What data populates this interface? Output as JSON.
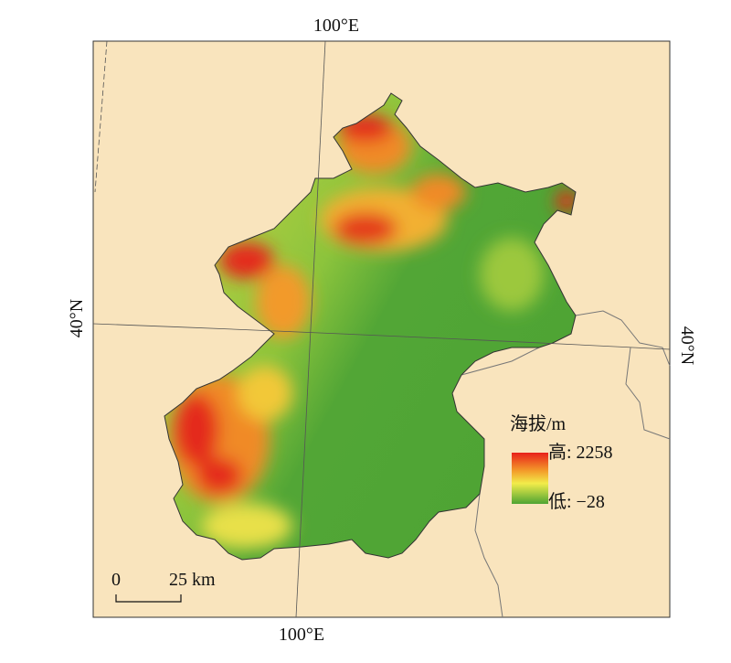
{
  "graticule": {
    "top_label": "100°E",
    "bottom_label": "100°E",
    "left_label": "40°N",
    "right_label": "40°N"
  },
  "legend": {
    "title": "海拔/m",
    "high": "高: 2258",
    "low": "低: −28"
  },
  "scale_bar": {
    "start": "0",
    "end": "25 km"
  }
}
